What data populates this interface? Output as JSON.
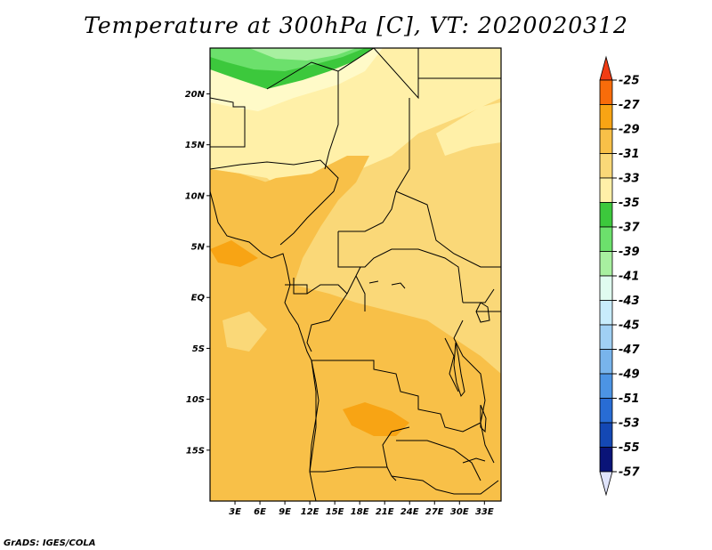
{
  "title": "Temperature at 300hPa [C], VT: 2020020312",
  "credit": "GrADS: IGES/COLA",
  "map": {
    "lat_labels": [
      "20N",
      "15N",
      "10N",
      "5N",
      "EQ",
      "5S",
      "10S",
      "15S"
    ],
    "lon_labels": [
      "3E",
      "6E",
      "9E",
      "12E",
      "15E",
      "18E",
      "21E",
      "24E",
      "27E",
      "30E",
      "33E"
    ],
    "lon_range": [
      0,
      35
    ],
    "lat_range": [
      -20,
      24.5
    ]
  },
  "colorbar": {
    "labels": [
      "-25",
      "-27",
      "-29",
      "-31",
      "-33",
      "-35",
      "-37",
      "-39",
      "-41",
      "-43",
      "-45",
      "-47",
      "-49",
      "-51",
      "-53",
      "-55",
      "-57"
    ],
    "colors": [
      "#f03c14",
      "#f86c0a",
      "#f8a414",
      "#f8c048",
      "#fad878",
      "#fff0a8",
      "#3cc83c",
      "#6ce06c",
      "#a8f0a0",
      "#e0fcf0",
      "#c8ecfc",
      "#a0d0f4",
      "#78b4ec",
      "#4c94e4",
      "#286cd4",
      "#1448b4",
      "#0a1478",
      "#e0e4fc"
    ]
  }
}
